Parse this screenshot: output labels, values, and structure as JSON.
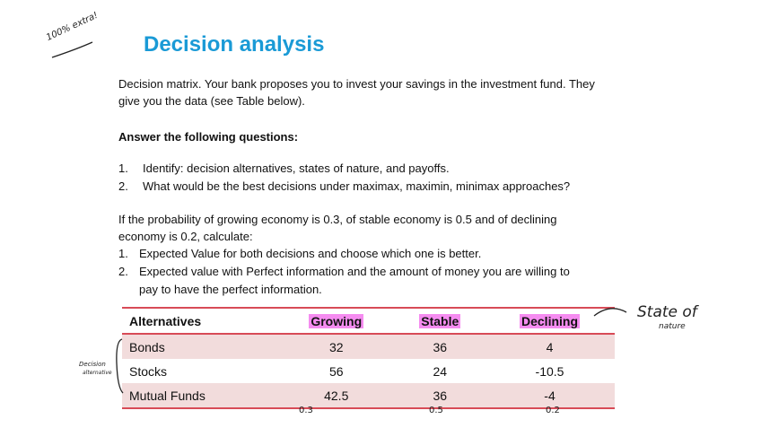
{
  "annotation_top_left": "100% extra!",
  "title": "Decision analysis",
  "intro_line1": "Decision matrix. Your bank proposes you to invest your savings in the investment fund. They",
  "intro_line2": "give you the data (see Table below).",
  "questions_heading": "Answer the following questions:",
  "questions": [
    {
      "num": "1.",
      "text": "Identify: decision alternatives, states of nature, and payoffs."
    },
    {
      "num": "2.",
      "text": "What would be the best decisions under maximax, maximin, minimax approaches?"
    }
  ],
  "prob_line1": "If the probability of growing economy is 0.3, of stable economy is 0.5 and of declining",
  "prob_line2": "economy is 0.2, calculate:",
  "calc_items": [
    {
      "num": "1.",
      "text": "Expected Value for both decisions and choose which one is better."
    },
    {
      "num": "2.",
      "text": "Expected value with Perfect information and the amount of money you are willing to",
      "text2": "pay to have the perfect information."
    }
  ],
  "table": {
    "headers": [
      "Alternatives",
      "Growing",
      "Stable",
      "Declining"
    ],
    "rows": [
      [
        "Bonds",
        "32",
        "36",
        "4"
      ],
      [
        "Stocks",
        "56",
        "24",
        "-10.5"
      ],
      [
        "Mutual Funds",
        "42.5",
        "36",
        "-4"
      ]
    ]
  },
  "annotation_state_of_nature": "State of",
  "annotation_state_of_nature2": "nature",
  "annotation_decision": "Decision",
  "annotation_decision2": "alternative",
  "probabilities": [
    "0.3",
    "0.5",
    "0.2"
  ],
  "colors": {
    "title": "#1a9ad6",
    "rule": "#d84b57",
    "shade": "#f2dcdc",
    "highlight": "#f58cf0"
  }
}
